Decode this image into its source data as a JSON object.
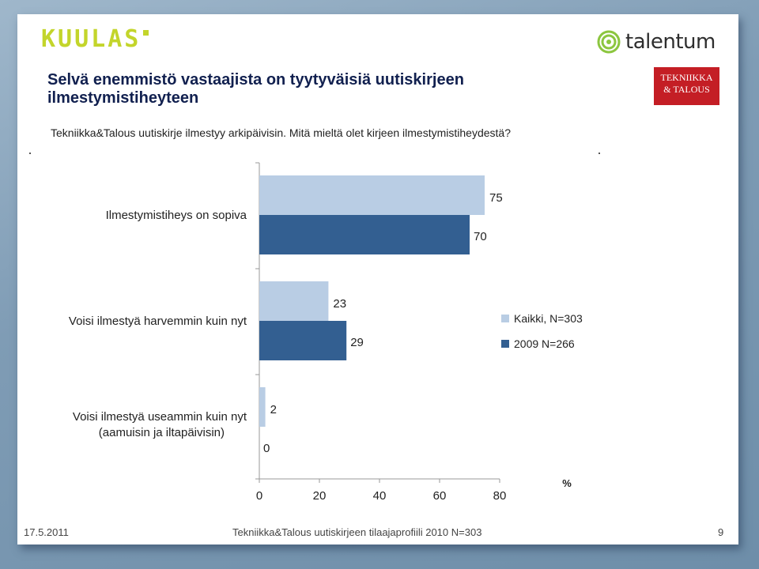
{
  "header": {
    "logo_left": "KUULAS",
    "logo_right": "talentum",
    "logo_badge_line1": "TEKNIIKKA",
    "logo_badge_line2": "& TALOUS"
  },
  "slide": {
    "title": "Selvä enemmistö vastaajista on tyytyväisiä uutiskirjeen ilmestymistiheyteen",
    "subtitle": "Tekniikka&Talous uutiskirje ilmestyy arkipäivisin. Mitä mieltä olet kirjeen ilmestymistiheydestä?"
  },
  "chart_data": {
    "type": "bar",
    "orientation": "horizontal",
    "categories": [
      "Ilmestymistiheys on sopiva",
      "Voisi ilmestyä harvemmin kuin nyt",
      "Voisi ilmestyä useammin kuin nyt (aamuisin ja iltapäivisin)"
    ],
    "series": [
      {
        "name": "Kaikki, N=303",
        "values": [
          75,
          23,
          2
        ],
        "color": "#b9cde4"
      },
      {
        "name": "2009 N=266",
        "values": [
          70,
          29,
          0
        ],
        "color": "#335f91"
      }
    ],
    "xlabel": "%",
    "xlim": [
      0,
      80
    ],
    "xticks": [
      0,
      20,
      40,
      60,
      80
    ],
    "legend_position": "right",
    "grid": false
  },
  "footer": {
    "date": "17.5.2011",
    "center": "Tekniikka&Talous uutiskirjeen tilaajaprofiili 2010 N=303",
    "page": "9"
  }
}
